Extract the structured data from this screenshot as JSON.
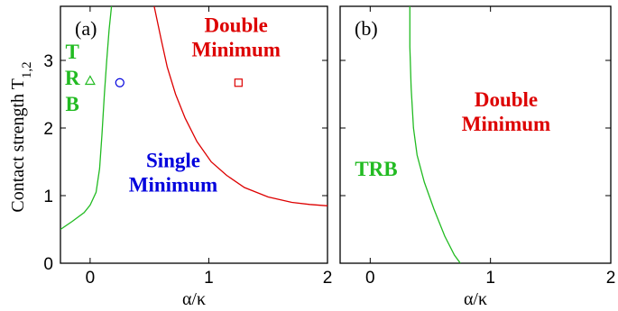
{
  "chart_data": [
    {
      "type": "line",
      "panel_label": "(a)",
      "xlabel": "α/κ",
      "ylabel": "Contact strength T",
      "ylabel_subscript": "1,2",
      "xlim": [
        -0.25,
        2.0
      ],
      "ylim": [
        0,
        3.8
      ],
      "x_ticks": [
        0,
        1,
        2
      ],
      "x_tick_labels": [
        "0",
        "1",
        "2"
      ],
      "y_ticks": [
        0,
        1,
        2,
        3
      ],
      "y_tick_labels": [
        "0",
        "1",
        "2",
        "3"
      ],
      "grid": false,
      "series": [
        {
          "color": "#22bb22",
          "points": [
            [
              -0.25,
              0.5
            ],
            [
              -0.15,
              0.62
            ],
            [
              -0.05,
              0.75
            ],
            [
              0.0,
              0.86
            ],
            [
              0.05,
              1.05
            ],
            [
              0.08,
              1.4
            ],
            [
              0.1,
              1.9
            ],
            [
              0.12,
              2.5
            ],
            [
              0.14,
              3.0
            ],
            [
              0.16,
              3.45
            ],
            [
              0.18,
              3.8
            ]
          ]
        },
        {
          "color": "#dd0000",
          "points": [
            [
              0.54,
              3.8
            ],
            [
              0.6,
              3.3
            ],
            [
              0.65,
              2.9
            ],
            [
              0.72,
              2.5
            ],
            [
              0.8,
              2.15
            ],
            [
              0.9,
              1.8
            ],
            [
              1.02,
              1.5
            ],
            [
              1.15,
              1.3
            ],
            [
              1.3,
              1.12
            ],
            [
              1.5,
              0.98
            ],
            [
              1.7,
              0.9
            ],
            [
              1.85,
              0.87
            ],
            [
              2.0,
              0.85
            ]
          ]
        }
      ],
      "markers": [
        {
          "shape": "triangle",
          "x": 0.0,
          "y": 2.7,
          "color": "#22bb22"
        },
        {
          "shape": "circle",
          "x": 0.25,
          "y": 2.67,
          "color": "#0000dd"
        },
        {
          "shape": "square",
          "x": 1.25,
          "y": 2.67,
          "color": "#dd0000"
        }
      ],
      "region_labels": [
        {
          "lines": [
            "Double",
            "Minimum"
          ],
          "color": "#dd0000",
          "x": 1.23,
          "y": 3.35
        },
        {
          "lines": [
            "T",
            "R",
            "B"
          ],
          "color": "#22bb22",
          "x": -0.15,
          "y": 2.75
        },
        {
          "lines": [
            "Single",
            "Minimum"
          ],
          "color": "#0000dd",
          "x": 0.7,
          "y": 1.35
        }
      ]
    },
    {
      "type": "line",
      "panel_label": "(b)",
      "xlabel": "α/κ",
      "ylabel": "",
      "xlim": [
        -0.25,
        2.0
      ],
      "ylim": [
        0,
        3.8
      ],
      "x_ticks": [
        0,
        1,
        2
      ],
      "x_tick_labels": [
        "0",
        "1",
        "2"
      ],
      "y_ticks": [
        0,
        1,
        2,
        3
      ],
      "y_tick_labels": [],
      "grid": false,
      "series": [
        {
          "color": "#22bb22",
          "points": [
            [
              0.33,
              3.8
            ],
            [
              0.33,
              3.2
            ],
            [
              0.34,
              2.6
            ],
            [
              0.36,
              2.0
            ],
            [
              0.39,
              1.6
            ],
            [
              0.45,
              1.2
            ],
            [
              0.53,
              0.8
            ],
            [
              0.62,
              0.4
            ],
            [
              0.7,
              0.12
            ],
            [
              0.75,
              0.0
            ]
          ]
        }
      ],
      "markers": [],
      "region_labels": [
        {
          "lines": [
            "Double",
            "Minimum"
          ],
          "color": "#dd0000",
          "x": 1.13,
          "y": 2.25
        },
        {
          "lines": [
            "TRB"
          ],
          "color": "#22bb22",
          "x": 0.05,
          "y": 1.4
        }
      ]
    }
  ]
}
